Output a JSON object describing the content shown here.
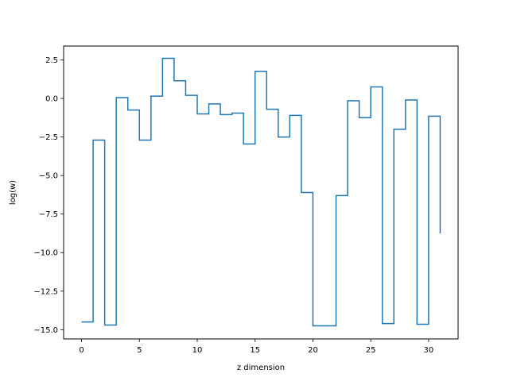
{
  "chart_data": {
    "type": "line",
    "style": "step-post",
    "xlabel": "z dimension",
    "ylabel": "log(w)",
    "xlim": [
      -1.55,
      32.55
    ],
    "ylim": [
      -15.6,
      3.4
    ],
    "xticks": [
      0,
      5,
      10,
      15,
      20,
      25,
      30
    ],
    "xtick_labels": [
      "0",
      "5",
      "10",
      "15",
      "20",
      "25",
      "30"
    ],
    "yticks": [
      2.5,
      0.0,
      -2.5,
      -5.0,
      -7.5,
      -10.0,
      -12.5,
      -15.0
    ],
    "ytick_labels": [
      "2.5",
      "0.0",
      "−2.5",
      "−5.0",
      "−7.5",
      "−10.0",
      "−12.5",
      "−15.0"
    ],
    "grid": false,
    "series": [
      {
        "color": "#1f77b4",
        "x": [
          0,
          1,
          2,
          3,
          4,
          5,
          6,
          7,
          8,
          9,
          10,
          11,
          12,
          13,
          14,
          15,
          16,
          17,
          18,
          19,
          20,
          21,
          22,
          23,
          24,
          25,
          26,
          27,
          28,
          29,
          30,
          31
        ],
        "y": [
          -14.5,
          -2.7,
          -14.7,
          0.05,
          -0.75,
          -2.7,
          0.15,
          2.6,
          1.15,
          0.2,
          -1.0,
          -0.35,
          -1.05,
          -0.95,
          -2.95,
          1.75,
          -0.7,
          -2.5,
          -1.1,
          -6.1,
          -14.75,
          -14.75,
          -6.3,
          -0.15,
          -1.25,
          0.75,
          -14.6,
          -2.0,
          -0.1,
          -14.65,
          -1.15,
          -8.75
        ]
      }
    ]
  }
}
